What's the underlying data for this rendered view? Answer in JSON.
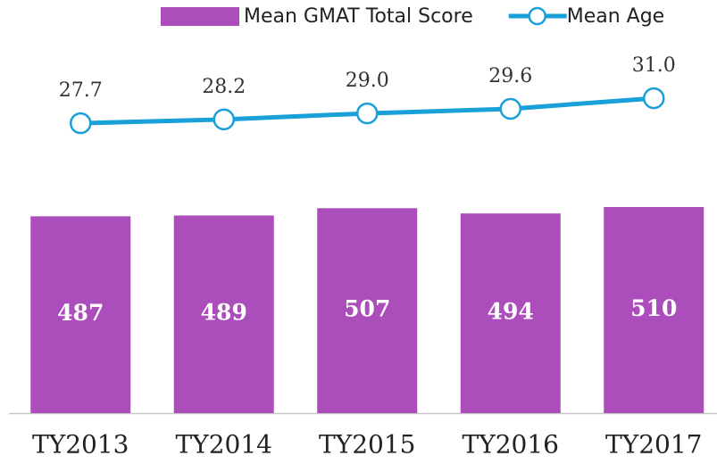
{
  "chart_data": {
    "type": "bar",
    "categories": [
      "TY2013",
      "TY2014",
      "TY2015",
      "TY2016",
      "TY2017"
    ],
    "series": [
      {
        "name": "Mean GMAT Total Score",
        "type": "bar",
        "color": "#ab4dba",
        "values": [
          487,
          489,
          507,
          494,
          510
        ]
      },
      {
        "name": "Mean Age",
        "type": "line",
        "axis": "y2",
        "color": "#1aa0d8",
        "values": [
          27.7,
          28.2,
          29.0,
          29.6,
          31.0
        ],
        "value_labels": [
          "27.7",
          "28.2",
          "29.0",
          "29.6",
          "31.0"
        ]
      }
    ],
    "ylim": [
      0,
      1000
    ],
    "y2lim": [
      -10.6,
      42.8
    ],
    "legend": "top"
  }
}
